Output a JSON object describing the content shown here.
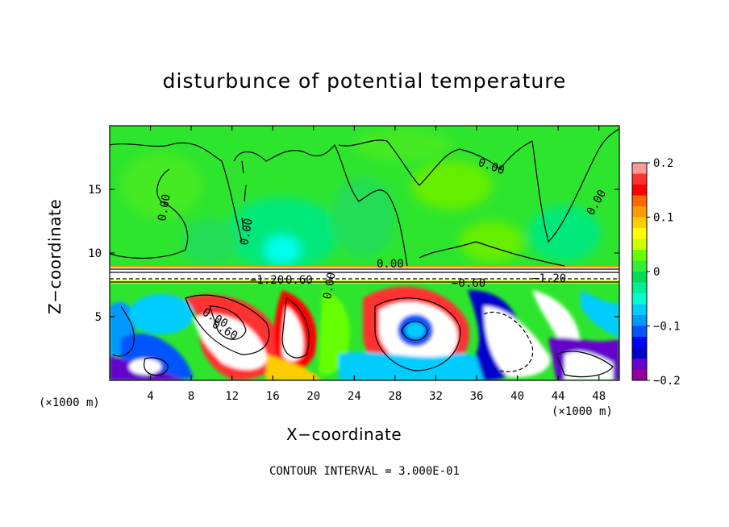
{
  "chart_data": {
    "type": "heatmap",
    "title": "disturbunce of potential temperature",
    "xlabel": "X−coordinate",
    "ylabel": "Z−coordinate",
    "x_unit": "(×1000 m)",
    "y_unit": "(×1000 m)",
    "xlim": [
      0,
      50
    ],
    "ylim": [
      0,
      20
    ],
    "x_ticks": [
      4,
      8,
      12,
      16,
      20,
      24,
      28,
      32,
      36,
      40,
      44,
      48
    ],
    "y_ticks": [
      5,
      10,
      15
    ],
    "colorbar": {
      "range": [
        -0.2,
        0.2
      ],
      "ticks": [
        0.2,
        0.1,
        0,
        -0.1,
        -0.2
      ],
      "colors": [
        "#ff9999",
        "#ff3333",
        "#ff0000",
        "#ff6600",
        "#ff9900",
        "#ffcc00",
        "#ffff00",
        "#ccff00",
        "#66ff00",
        "#33ee33",
        "#00dd55",
        "#00ee99",
        "#00ffcc",
        "#00ccff",
        "#0099ff",
        "#0055ff",
        "#0000ff",
        "#0000cc",
        "#6600cc",
        "#990099"
      ]
    },
    "contour_labels": [
      "0.00",
      "0.00",
      "0.00",
      "0.00",
      "0.00",
      "−1.20",
      "0.60",
      "0.60",
      "−0.60",
      "−1.20",
      "0.00",
      "0.00"
    ],
    "footer": "CONTOUR INTERVAL = 3.000E-01"
  }
}
